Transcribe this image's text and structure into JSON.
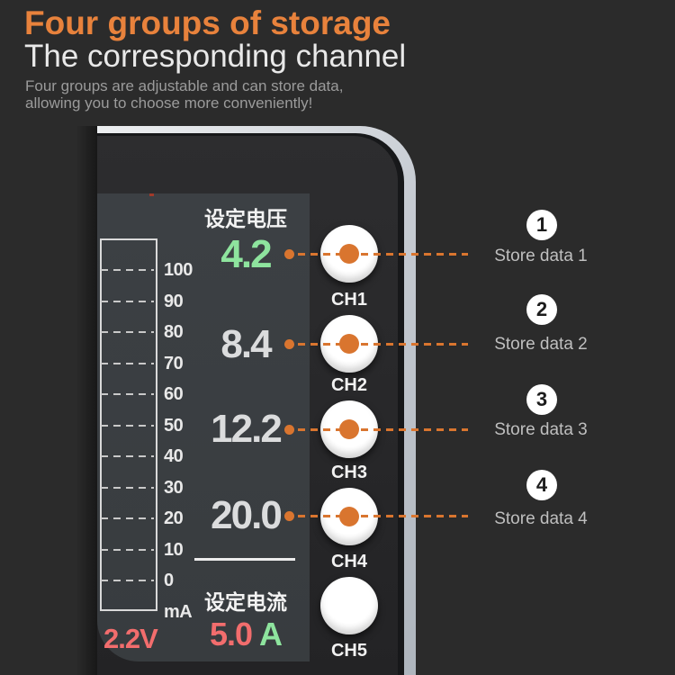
{
  "header": {
    "title": "Four groups of storage",
    "subtitle": "The corresponding channel",
    "description_line1": "Four groups are adjustable and can store data,",
    "description_line2": "allowing you to choose more conveniently!"
  },
  "device": {
    "screen": {
      "set_voltage_label": "设定电压",
      "voltage_values": [
        {
          "value": "4.2",
          "color": "#8EE49E"
        },
        {
          "value": "8.4",
          "color": "#DBDCDD"
        },
        {
          "value": "12.2",
          "color": "#DBDCDD"
        },
        {
          "value": "20.0",
          "color": "#DBDCDD"
        }
      ],
      "scale": {
        "tick_labels": [
          "100",
          "90",
          "80",
          "70",
          "60",
          "50",
          "40",
          "30",
          "20",
          "10",
          "0",
          "mA"
        ]
      },
      "set_current_label": "设定电流",
      "current_value": "5.0",
      "current_unit": "A",
      "bottom_left_value": "2.2V"
    },
    "channels": [
      {
        "label": "CH1",
        "has_dot": true
      },
      {
        "label": "CH2",
        "has_dot": true
      },
      {
        "label": "CH3",
        "has_dot": true
      },
      {
        "label": "CH4",
        "has_dot": true
      },
      {
        "label": "CH5",
        "has_dot": false
      }
    ]
  },
  "annotations": [
    {
      "number": "1",
      "label": "Store data 1"
    },
    {
      "number": "2",
      "label": "Store data 2"
    },
    {
      "number": "3",
      "label": "Store data 3"
    },
    {
      "number": "4",
      "label": "Store data 4"
    }
  ],
  "colors": {
    "background": "#2B2B2B",
    "accent_orange": "#E8823C",
    "connector_orange": "#D9752F",
    "value_green": "#8EE49E",
    "value_red": "#F26D6D",
    "store_label_gray": "#BFBFBF"
  }
}
